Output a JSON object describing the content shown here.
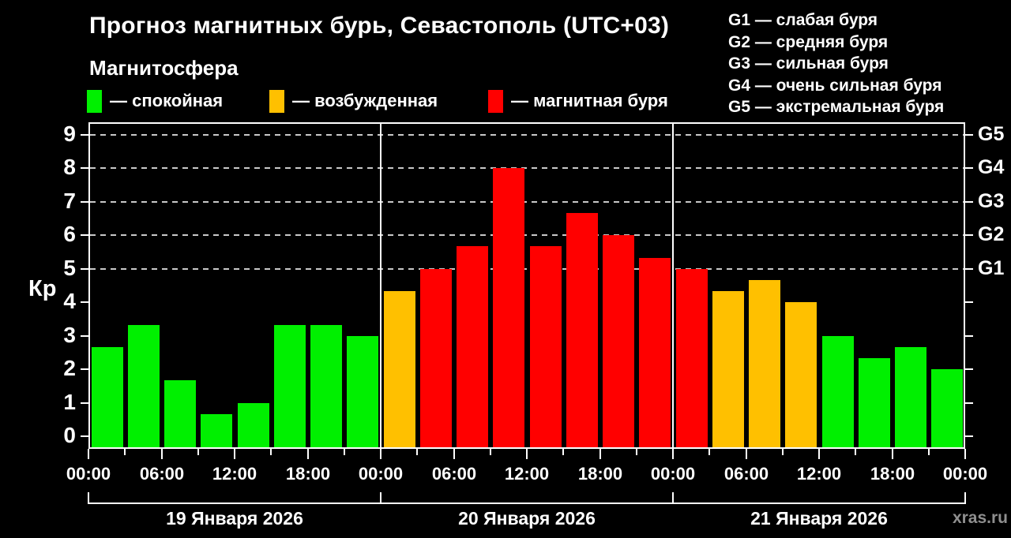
{
  "header": {
    "title": "Прогноз магнитных бурь, Севастополь (UTC+03)",
    "subtitle": "Магнитосфера"
  },
  "legend": {
    "items": [
      {
        "status": "quiet",
        "label": "— спокойная"
      },
      {
        "status": "active",
        "label": "— возбужденная"
      },
      {
        "status": "storm",
        "label": "— магнитная буря"
      }
    ]
  },
  "storm_scale": {
    "items": [
      {
        "line": "G1 — слабая буря"
      },
      {
        "line": "G2 — средняя буря"
      },
      {
        "line": "G3 — сильная буря"
      },
      {
        "line": "G4 — очень сильная буря"
      },
      {
        "line": "G5 — экстремальная буря"
      }
    ]
  },
  "watermark": "xras.ru",
  "chart_data": {
    "type": "bar",
    "title": "Прогноз магнитных бурь, Севастополь (UTC+03)",
    "ylabel": "Кр",
    "ylim": [
      0,
      9
    ],
    "interval_hours": 3,
    "yticks": [
      "0",
      "1",
      "2",
      "3",
      "4",
      "5",
      "6",
      "7",
      "8",
      "9"
    ],
    "grid_kp": [
      5,
      6,
      7,
      8,
      9
    ],
    "right_axis": [
      {
        "kp": 5,
        "label": "G1"
      },
      {
        "kp": 6,
        "label": "G2"
      },
      {
        "kp": 7,
        "label": "G3"
      },
      {
        "kp": 8,
        "label": "G4"
      },
      {
        "kp": 9,
        "label": "G5"
      }
    ],
    "time_labels": [
      "00:00",
      "06:00",
      "12:00",
      "18:00",
      "00:00",
      "06:00",
      "12:00",
      "18:00",
      "00:00",
      "06:00",
      "12:00",
      "18:00",
      "00:00"
    ],
    "status_colors": {
      "quiet": "#00f000",
      "active": "#ffc000",
      "storm": "#ff0000"
    },
    "days": [
      {
        "date": "19 Января 2026",
        "values": [
          2.67,
          3.33,
          1.67,
          0.67,
          1.0,
          3.33,
          3.33,
          3.0
        ],
        "statuses": [
          "quiet",
          "quiet",
          "quiet",
          "quiet",
          "quiet",
          "quiet",
          "quiet",
          "quiet"
        ]
      },
      {
        "date": "20 Января 2026",
        "values": [
          4.33,
          5.0,
          5.67,
          8.0,
          5.67,
          6.67,
          6.0,
          5.33
        ],
        "statuses": [
          "active",
          "storm",
          "storm",
          "storm",
          "storm",
          "storm",
          "storm",
          "storm"
        ]
      },
      {
        "date": "21 Января 2026",
        "values": [
          5.0,
          4.33,
          4.67,
          4.0,
          3.0,
          2.33,
          2.67,
          2.0
        ],
        "statuses": [
          "storm",
          "active",
          "active",
          "active",
          "quiet",
          "quiet",
          "quiet",
          "quiet"
        ]
      }
    ]
  }
}
